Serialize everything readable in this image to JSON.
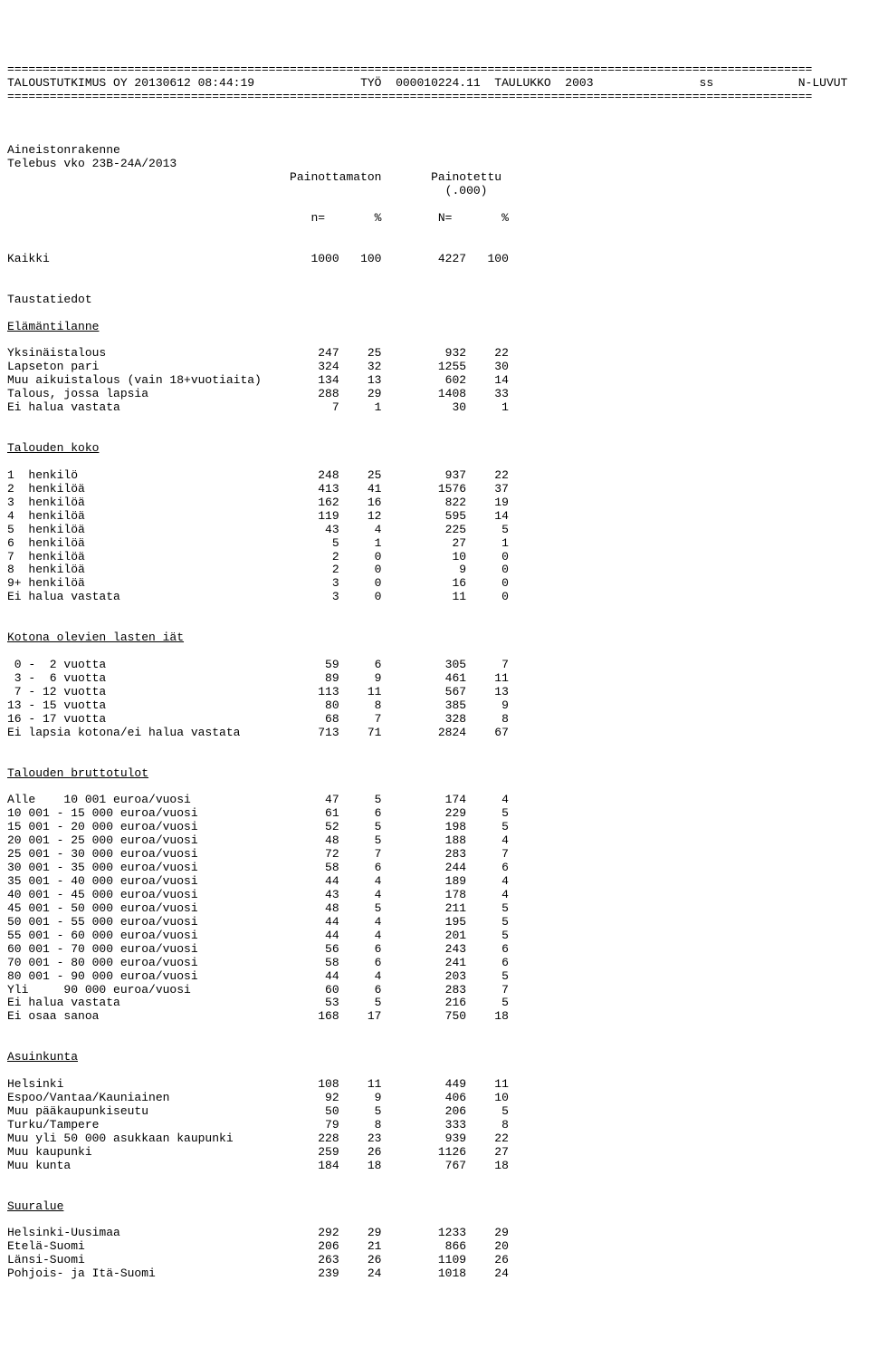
{
  "report": {
    "rule": "==================================================================================================================",
    "header_company": "TALOUSTUTKIMUS OY 20130612 08:44:19",
    "header_job": "TYÖ  000010224.11  TAULUKKO  2003",
    "header_user": "ss",
    "header_right": "N-LUVUT",
    "title1": "Aineistonrakenne",
    "title2": "Telebus vko 23B-24A/2013",
    "col_unweighted": "Painottamaton",
    "col_weighted": "Painotettu",
    "col_weighted_sub": "(.000)",
    "col_n": "n=",
    "col_pct": "%",
    "col_N": "N=",
    "col_Pct": "%",
    "kaikki_label": "Kaikki",
    "kaikki": {
      "n": "1000",
      "p": "100",
      "N": "4227",
      "P": "100"
    },
    "taustatiedot": "Taustatiedot",
    "sections": {
      "elamantilanne": {
        "title": "Elämäntilanne",
        "rows": [
          {
            "l": "Yksinäistalous",
            "n": "247",
            "p": "25",
            "N": "932",
            "P": "22"
          },
          {
            "l": "Lapseton pari",
            "n": "324",
            "p": "32",
            "N": "1255",
            "P": "30"
          },
          {
            "l": "Muu aikuistalous (vain 18+vuotiaita)",
            "n": "134",
            "p": "13",
            "N": "602",
            "P": "14"
          },
          {
            "l": "Talous, jossa lapsia",
            "n": "288",
            "p": "29",
            "N": "1408",
            "P": "33"
          },
          {
            "l": "Ei halua vastata",
            "n": "7",
            "p": "1",
            "N": "30",
            "P": "1"
          }
        ]
      },
      "talouden_koko": {
        "title": "Talouden koko",
        "rows": [
          {
            "l": "1  henkilö",
            "n": "248",
            "p": "25",
            "N": "937",
            "P": "22"
          },
          {
            "l": "2  henkilöä",
            "n": "413",
            "p": "41",
            "N": "1576",
            "P": "37"
          },
          {
            "l": "3  henkilöä",
            "n": "162",
            "p": "16",
            "N": "822",
            "P": "19"
          },
          {
            "l": "4  henkilöä",
            "n": "119",
            "p": "12",
            "N": "595",
            "P": "14"
          },
          {
            "l": "5  henkilöä",
            "n": "43",
            "p": "4",
            "N": "225",
            "P": "5"
          },
          {
            "l": "6  henkilöä",
            "n": "5",
            "p": "1",
            "N": "27",
            "P": "1"
          },
          {
            "l": "7  henkilöä",
            "n": "2",
            "p": "0",
            "N": "10",
            "P": "0"
          },
          {
            "l": "8  henkilöä",
            "n": "2",
            "p": "0",
            "N": "9",
            "P": "0"
          },
          {
            "l": "9+ henkilöä",
            "n": "3",
            "p": "0",
            "N": "16",
            "P": "0"
          },
          {
            "l": "Ei halua vastata",
            "n": "3",
            "p": "0",
            "N": "11",
            "P": "0"
          }
        ]
      },
      "lasten_iat": {
        "title": "Kotona olevien lasten iät",
        "rows": [
          {
            "l": " 0 -  2 vuotta",
            "n": "59",
            "p": "6",
            "N": "305",
            "P": "7"
          },
          {
            "l": " 3 -  6 vuotta",
            "n": "89",
            "p": "9",
            "N": "461",
            "P": "11"
          },
          {
            "l": " 7 - 12 vuotta",
            "n": "113",
            "p": "11",
            "N": "567",
            "P": "13"
          },
          {
            "l": "13 - 15 vuotta",
            "n": "80",
            "p": "8",
            "N": "385",
            "P": "9"
          },
          {
            "l": "16 - 17 vuotta",
            "n": "68",
            "p": "7",
            "N": "328",
            "P": "8"
          },
          {
            "l": "Ei lapsia kotona/ei halua vastata",
            "n": "713",
            "p": "71",
            "N": "2824",
            "P": "67"
          }
        ]
      },
      "bruttotulot": {
        "title": "Talouden bruttotulot",
        "rows": [
          {
            "l": "Alle    10 001 euroa/vuosi",
            "n": "47",
            "p": "5",
            "N": "174",
            "P": "4"
          },
          {
            "l": "10 001 - 15 000 euroa/vuosi",
            "n": "61",
            "p": "6",
            "N": "229",
            "P": "5"
          },
          {
            "l": "15 001 - 20 000 euroa/vuosi",
            "n": "52",
            "p": "5",
            "N": "198",
            "P": "5"
          },
          {
            "l": "20 001 - 25 000 euroa/vuosi",
            "n": "48",
            "p": "5",
            "N": "188",
            "P": "4"
          },
          {
            "l": "25 001 - 30 000 euroa/vuosi",
            "n": "72",
            "p": "7",
            "N": "283",
            "P": "7"
          },
          {
            "l": "30 001 - 35 000 euroa/vuosi",
            "n": "58",
            "p": "6",
            "N": "244",
            "P": "6"
          },
          {
            "l": "35 001 - 40 000 euroa/vuosi",
            "n": "44",
            "p": "4",
            "N": "189",
            "P": "4"
          },
          {
            "l": "40 001 - 45 000 euroa/vuosi",
            "n": "43",
            "p": "4",
            "N": "178",
            "P": "4"
          },
          {
            "l": "45 001 - 50 000 euroa/vuosi",
            "n": "48",
            "p": "5",
            "N": "211",
            "P": "5"
          },
          {
            "l": "50 001 - 55 000 euroa/vuosi",
            "n": "44",
            "p": "4",
            "N": "195",
            "P": "5"
          },
          {
            "l": "55 001 - 60 000 euroa/vuosi",
            "n": "44",
            "p": "4",
            "N": "201",
            "P": "5"
          },
          {
            "l": "60 001 - 70 000 euroa/vuosi",
            "n": "56",
            "p": "6",
            "N": "243",
            "P": "6"
          },
          {
            "l": "70 001 - 80 000 euroa/vuosi",
            "n": "58",
            "p": "6",
            "N": "241",
            "P": "6"
          },
          {
            "l": "80 001 - 90 000 euroa/vuosi",
            "n": "44",
            "p": "4",
            "N": "203",
            "P": "5"
          },
          {
            "l": "Yli     90 000 euroa/vuosi",
            "n": "60",
            "p": "6",
            "N": "283",
            "P": "7"
          },
          {
            "l": "Ei halua vastata",
            "n": "53",
            "p": "5",
            "N": "216",
            "P": "5"
          },
          {
            "l": "Ei osaa sanoa",
            "n": "168",
            "p": "17",
            "N": "750",
            "P": "18"
          }
        ]
      },
      "asuinkunta": {
        "title": "Asuinkunta",
        "rows": [
          {
            "l": "Helsinki",
            "n": "108",
            "p": "11",
            "N": "449",
            "P": "11"
          },
          {
            "l": "Espoo/Vantaa/Kauniainen",
            "n": "92",
            "p": "9",
            "N": "406",
            "P": "10"
          },
          {
            "l": "Muu pääkaupunkiseutu",
            "n": "50",
            "p": "5",
            "N": "206",
            "P": "5"
          },
          {
            "l": "Turku/Tampere",
            "n": "79",
            "p": "8",
            "N": "333",
            "P": "8"
          },
          {
            "l": "Muu yli 50 000 asukkaan kaupunki",
            "n": "228",
            "p": "23",
            "N": "939",
            "P": "22"
          },
          {
            "l": "Muu kaupunki",
            "n": "259",
            "p": "26",
            "N": "1126",
            "P": "27"
          },
          {
            "l": "Muu kunta",
            "n": "184",
            "p": "18",
            "N": "767",
            "P": "18"
          }
        ]
      },
      "suuralue": {
        "title": "Suuralue",
        "rows": [
          {
            "l": "Helsinki-Uusimaa",
            "n": "292",
            "p": "29",
            "N": "1233",
            "P": "29"
          },
          {
            "l": "Etelä-Suomi",
            "n": "206",
            "p": "21",
            "N": "866",
            "P": "20"
          },
          {
            "l": "Länsi-Suomi",
            "n": "263",
            "p": "26",
            "N": "1109",
            "P": "26"
          },
          {
            "l": "Pohjois- ja Itä-Suomi",
            "n": "239",
            "p": "24",
            "N": "1018",
            "P": "24"
          }
        ]
      }
    },
    "layout": {
      "label_width": 40,
      "col_n_width": 7,
      "col_p_width": 6,
      "col_N_width": 12,
      "col_P_width": 6
    }
  }
}
